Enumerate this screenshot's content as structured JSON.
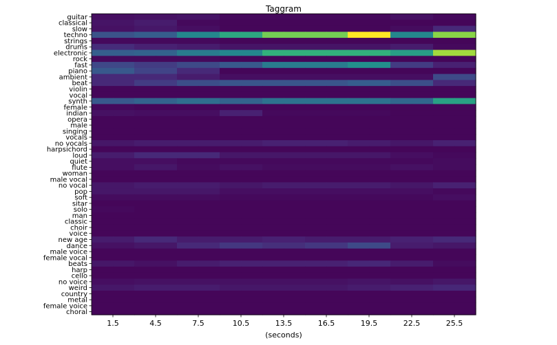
{
  "chart_data": {
    "type": "heatmap",
    "title": "Taggram",
    "xlabel": "(seconds)",
    "ylabel": "",
    "colormap": "viridis",
    "vmin": 0,
    "vmax": 1,
    "x": [
      "1.5",
      "4.5",
      "7.5",
      "10.5",
      "13.5",
      "16.5",
      "19.5",
      "22.5",
      "25.5"
    ],
    "xticks_at_columns": [
      0,
      2,
      4,
      6,
      8,
      10,
      12,
      14,
      16
    ],
    "columns": 18,
    "y": [
      "guitar",
      "classical",
      "slow",
      "techno",
      "strings",
      "drums",
      "electronic",
      "rock",
      "fast",
      "piano",
      "ambient",
      "beat",
      "violin",
      "vocal",
      "synth",
      "female",
      "indian",
      "opera",
      "male",
      "singing",
      "vocals",
      "no vocals",
      "harpsichord",
      "loud",
      "quiet",
      "flute",
      "woman",
      "male vocal",
      "no vocal",
      "pop",
      "soft",
      "sitar",
      "solo",
      "man",
      "classic",
      "choir",
      "voice",
      "new age",
      "dance",
      "male voice",
      "female vocal",
      "beats",
      "harp",
      "cello",
      "no voice",
      "weird",
      "country",
      "metal",
      "female voice",
      "choral"
    ],
    "values": [
      [
        0.05,
        0.05,
        0.06,
        0.06,
        0.07,
        0.07,
        0.03,
        0.03,
        0.03,
        0.03,
        0.03,
        0.03,
        0.03,
        0.03,
        0.06,
        0.06,
        0.03,
        0.03
      ],
      [
        0.07,
        0.07,
        0.1,
        0.1,
        0.03,
        0.03,
        0.02,
        0.02,
        0.02,
        0.02,
        0.02,
        0.02,
        0.02,
        0.02,
        0.02,
        0.02,
        0.02,
        0.02
      ],
      [
        0.06,
        0.06,
        0.08,
        0.08,
        0.05,
        0.05,
        0.02,
        0.02,
        0.02,
        0.02,
        0.02,
        0.02,
        0.02,
        0.02,
        0.04,
        0.04,
        0.15,
        0.15
      ],
      [
        0.32,
        0.32,
        0.37,
        0.37,
        0.58,
        0.58,
        0.7,
        0.7,
        0.84,
        0.84,
        0.84,
        0.84,
        1.0,
        1.0,
        0.58,
        0.58,
        0.87,
        0.87
      ],
      [
        0.03,
        0.03,
        0.03,
        0.03,
        0.03,
        0.03,
        0.02,
        0.02,
        0.02,
        0.02,
        0.02,
        0.02,
        0.02,
        0.02,
        0.02,
        0.02,
        0.02,
        0.02
      ],
      [
        0.16,
        0.16,
        0.12,
        0.12,
        0.1,
        0.1,
        0.07,
        0.07,
        0.07,
        0.07,
        0.07,
        0.07,
        0.07,
        0.07,
        0.1,
        0.1,
        0.03,
        0.03
      ],
      [
        0.38,
        0.38,
        0.4,
        0.4,
        0.52,
        0.52,
        0.58,
        0.58,
        0.73,
        0.73,
        0.73,
        0.73,
        0.73,
        0.73,
        0.67,
        0.67,
        0.9,
        0.9
      ],
      [
        0.03,
        0.03,
        0.03,
        0.03,
        0.03,
        0.03,
        0.02,
        0.02,
        0.02,
        0.02,
        0.02,
        0.02,
        0.02,
        0.02,
        0.02,
        0.02,
        0.02,
        0.02
      ],
      [
        0.27,
        0.27,
        0.22,
        0.22,
        0.28,
        0.28,
        0.35,
        0.35,
        0.52,
        0.52,
        0.52,
        0.52,
        0.62,
        0.62,
        0.22,
        0.22,
        0.12,
        0.12
      ],
      [
        0.35,
        0.35,
        0.25,
        0.25,
        0.15,
        0.15,
        0.02,
        0.02,
        0.02,
        0.02,
        0.02,
        0.02,
        0.02,
        0.02,
        0.02,
        0.02,
        0.02,
        0.02
      ],
      [
        0.15,
        0.15,
        0.15,
        0.15,
        0.1,
        0.1,
        0.05,
        0.05,
        0.05,
        0.05,
        0.05,
        0.05,
        0.05,
        0.05,
        0.05,
        0.05,
        0.28,
        0.28
      ],
      [
        0.15,
        0.15,
        0.22,
        0.22,
        0.3,
        0.3,
        0.33,
        0.33,
        0.33,
        0.33,
        0.33,
        0.33,
        0.37,
        0.37,
        0.3,
        0.3,
        0.15,
        0.15
      ],
      [
        0.02,
        0.02,
        0.02,
        0.02,
        0.02,
        0.02,
        0.02,
        0.02,
        0.02,
        0.02,
        0.02,
        0.02,
        0.02,
        0.02,
        0.02,
        0.02,
        0.02,
        0.02
      ],
      [
        0.02,
        0.02,
        0.02,
        0.02,
        0.02,
        0.02,
        0.02,
        0.02,
        0.02,
        0.02,
        0.02,
        0.02,
        0.02,
        0.02,
        0.02,
        0.02,
        0.02,
        0.02
      ],
      [
        0.35,
        0.35,
        0.4,
        0.4,
        0.45,
        0.45,
        0.4,
        0.4,
        0.47,
        0.47,
        0.47,
        0.47,
        0.47,
        0.47,
        0.42,
        0.42,
        0.68,
        0.68
      ],
      [
        0.03,
        0.03,
        0.02,
        0.02,
        0.02,
        0.02,
        0.02,
        0.02,
        0.02,
        0.02,
        0.02,
        0.02,
        0.02,
        0.02,
        0.02,
        0.02,
        0.02,
        0.02
      ],
      [
        0.06,
        0.06,
        0.05,
        0.05,
        0.05,
        0.05,
        0.12,
        0.12,
        0.03,
        0.03,
        0.03,
        0.03,
        0.03,
        0.03,
        0.02,
        0.02,
        0.02,
        0.02
      ],
      [
        0.02,
        0.02,
        0.02,
        0.02,
        0.02,
        0.02,
        0.02,
        0.02,
        0.02,
        0.02,
        0.02,
        0.02,
        0.02,
        0.02,
        0.02,
        0.02,
        0.02,
        0.02
      ],
      [
        0.02,
        0.02,
        0.02,
        0.02,
        0.02,
        0.02,
        0.02,
        0.02,
        0.02,
        0.02,
        0.02,
        0.02,
        0.02,
        0.02,
        0.02,
        0.02,
        0.02,
        0.02
      ],
      [
        0.02,
        0.02,
        0.02,
        0.02,
        0.02,
        0.02,
        0.02,
        0.02,
        0.02,
        0.02,
        0.02,
        0.02,
        0.02,
        0.02,
        0.02,
        0.02,
        0.02,
        0.02
      ],
      [
        0.02,
        0.02,
        0.02,
        0.02,
        0.02,
        0.02,
        0.02,
        0.02,
        0.02,
        0.02,
        0.02,
        0.02,
        0.02,
        0.02,
        0.02,
        0.02,
        0.02,
        0.02
      ],
      [
        0.08,
        0.08,
        0.1,
        0.1,
        0.1,
        0.1,
        0.1,
        0.1,
        0.12,
        0.12,
        0.12,
        0.12,
        0.1,
        0.1,
        0.08,
        0.08,
        0.12,
        0.12
      ],
      [
        0.02,
        0.02,
        0.02,
        0.02,
        0.02,
        0.02,
        0.02,
        0.02,
        0.02,
        0.02,
        0.02,
        0.02,
        0.02,
        0.02,
        0.02,
        0.02,
        0.02,
        0.02
      ],
      [
        0.1,
        0.1,
        0.15,
        0.15,
        0.15,
        0.15,
        0.08,
        0.08,
        0.08,
        0.08,
        0.08,
        0.08,
        0.08,
        0.08,
        0.05,
        0.05,
        0.03,
        0.03
      ],
      [
        0.05,
        0.05,
        0.05,
        0.05,
        0.03,
        0.03,
        0.03,
        0.03,
        0.03,
        0.03,
        0.03,
        0.03,
        0.03,
        0.03,
        0.03,
        0.03,
        0.04,
        0.04
      ],
      [
        0.05,
        0.05,
        0.08,
        0.08,
        0.04,
        0.04,
        0.06,
        0.06,
        0.04,
        0.04,
        0.04,
        0.04,
        0.04,
        0.04,
        0.06,
        0.06,
        0.04,
        0.04
      ],
      [
        0.02,
        0.02,
        0.02,
        0.02,
        0.02,
        0.02,
        0.02,
        0.02,
        0.02,
        0.02,
        0.02,
        0.02,
        0.02,
        0.02,
        0.02,
        0.02,
        0.02,
        0.02
      ],
      [
        0.02,
        0.02,
        0.02,
        0.02,
        0.02,
        0.02,
        0.02,
        0.02,
        0.02,
        0.02,
        0.02,
        0.02,
        0.02,
        0.02,
        0.02,
        0.02,
        0.02,
        0.02
      ],
      [
        0.08,
        0.08,
        0.1,
        0.1,
        0.1,
        0.1,
        0.08,
        0.08,
        0.1,
        0.1,
        0.1,
        0.1,
        0.1,
        0.1,
        0.08,
        0.08,
        0.12,
        0.12
      ],
      [
        0.08,
        0.08,
        0.08,
        0.08,
        0.08,
        0.08,
        0.05,
        0.05,
        0.05,
        0.05,
        0.05,
        0.05,
        0.05,
        0.05,
        0.05,
        0.05,
        0.03,
        0.03
      ],
      [
        0.04,
        0.04,
        0.04,
        0.04,
        0.04,
        0.04,
        0.03,
        0.03,
        0.03,
        0.03,
        0.03,
        0.03,
        0.03,
        0.03,
        0.03,
        0.03,
        0.05,
        0.05
      ],
      [
        0.02,
        0.02,
        0.02,
        0.02,
        0.02,
        0.02,
        0.02,
        0.02,
        0.02,
        0.02,
        0.02,
        0.02,
        0.02,
        0.02,
        0.02,
        0.02,
        0.02,
        0.02
      ],
      [
        0.03,
        0.03,
        0.02,
        0.02,
        0.02,
        0.02,
        0.02,
        0.02,
        0.02,
        0.02,
        0.02,
        0.02,
        0.02,
        0.02,
        0.02,
        0.02,
        0.02,
        0.02
      ],
      [
        0.02,
        0.02,
        0.02,
        0.02,
        0.02,
        0.02,
        0.02,
        0.02,
        0.02,
        0.02,
        0.02,
        0.02,
        0.02,
        0.02,
        0.02,
        0.02,
        0.02,
        0.02
      ],
      [
        0.02,
        0.02,
        0.02,
        0.02,
        0.02,
        0.02,
        0.02,
        0.02,
        0.02,
        0.02,
        0.02,
        0.02,
        0.02,
        0.02,
        0.02,
        0.02,
        0.02,
        0.02
      ],
      [
        0.02,
        0.02,
        0.02,
        0.02,
        0.02,
        0.02,
        0.02,
        0.02,
        0.02,
        0.02,
        0.02,
        0.02,
        0.02,
        0.02,
        0.02,
        0.02,
        0.02,
        0.02
      ],
      [
        0.02,
        0.02,
        0.02,
        0.02,
        0.02,
        0.02,
        0.02,
        0.02,
        0.02,
        0.02,
        0.02,
        0.02,
        0.02,
        0.02,
        0.02,
        0.02,
        0.02,
        0.02
      ],
      [
        0.1,
        0.1,
        0.15,
        0.15,
        0.1,
        0.1,
        0.1,
        0.1,
        0.12,
        0.12,
        0.1,
        0.1,
        0.1,
        0.1,
        0.12,
        0.12,
        0.15,
        0.15
      ],
      [
        0.06,
        0.06,
        0.08,
        0.08,
        0.15,
        0.15,
        0.2,
        0.2,
        0.17,
        0.17,
        0.2,
        0.2,
        0.28,
        0.28,
        0.1,
        0.1,
        0.08,
        0.08
      ],
      [
        0.02,
        0.02,
        0.02,
        0.02,
        0.02,
        0.02,
        0.02,
        0.02,
        0.02,
        0.02,
        0.02,
        0.02,
        0.02,
        0.02,
        0.02,
        0.02,
        0.02,
        0.02
      ],
      [
        0.02,
        0.02,
        0.02,
        0.02,
        0.02,
        0.02,
        0.02,
        0.02,
        0.02,
        0.02,
        0.02,
        0.02,
        0.02,
        0.02,
        0.02,
        0.02,
        0.02,
        0.02
      ],
      [
        0.08,
        0.08,
        0.06,
        0.06,
        0.1,
        0.1,
        0.12,
        0.12,
        0.12,
        0.12,
        0.12,
        0.12,
        0.14,
        0.14,
        0.1,
        0.1,
        0.04,
        0.04
      ],
      [
        0.02,
        0.02,
        0.02,
        0.02,
        0.02,
        0.02,
        0.02,
        0.02,
        0.02,
        0.02,
        0.02,
        0.02,
        0.02,
        0.02,
        0.02,
        0.02,
        0.02,
        0.02
      ],
      [
        0.02,
        0.02,
        0.02,
        0.02,
        0.02,
        0.02,
        0.02,
        0.02,
        0.02,
        0.02,
        0.02,
        0.02,
        0.02,
        0.02,
        0.02,
        0.02,
        0.02,
        0.02
      ],
      [
        0.05,
        0.05,
        0.06,
        0.06,
        0.06,
        0.06,
        0.06,
        0.06,
        0.06,
        0.06,
        0.06,
        0.06,
        0.07,
        0.07,
        0.06,
        0.06,
        0.08,
        0.08
      ],
      [
        0.08,
        0.08,
        0.1,
        0.1,
        0.1,
        0.1,
        0.08,
        0.08,
        0.08,
        0.08,
        0.08,
        0.08,
        0.1,
        0.1,
        0.12,
        0.12,
        0.14,
        0.14
      ],
      [
        0.02,
        0.02,
        0.02,
        0.02,
        0.02,
        0.02,
        0.02,
        0.02,
        0.02,
        0.02,
        0.02,
        0.02,
        0.02,
        0.02,
        0.02,
        0.02,
        0.02,
        0.02
      ],
      [
        0.02,
        0.02,
        0.02,
        0.02,
        0.02,
        0.02,
        0.02,
        0.02,
        0.02,
        0.02,
        0.02,
        0.02,
        0.02,
        0.02,
        0.02,
        0.02,
        0.02,
        0.02
      ],
      [
        0.02,
        0.02,
        0.02,
        0.02,
        0.02,
        0.02,
        0.02,
        0.02,
        0.02,
        0.02,
        0.02,
        0.02,
        0.02,
        0.02,
        0.02,
        0.02,
        0.02,
        0.02
      ],
      [
        0.02,
        0.02,
        0.02,
        0.02,
        0.02,
        0.02,
        0.02,
        0.02,
        0.02,
        0.02,
        0.02,
        0.02,
        0.02,
        0.02,
        0.02,
        0.02,
        0.02,
        0.02
      ]
    ]
  }
}
